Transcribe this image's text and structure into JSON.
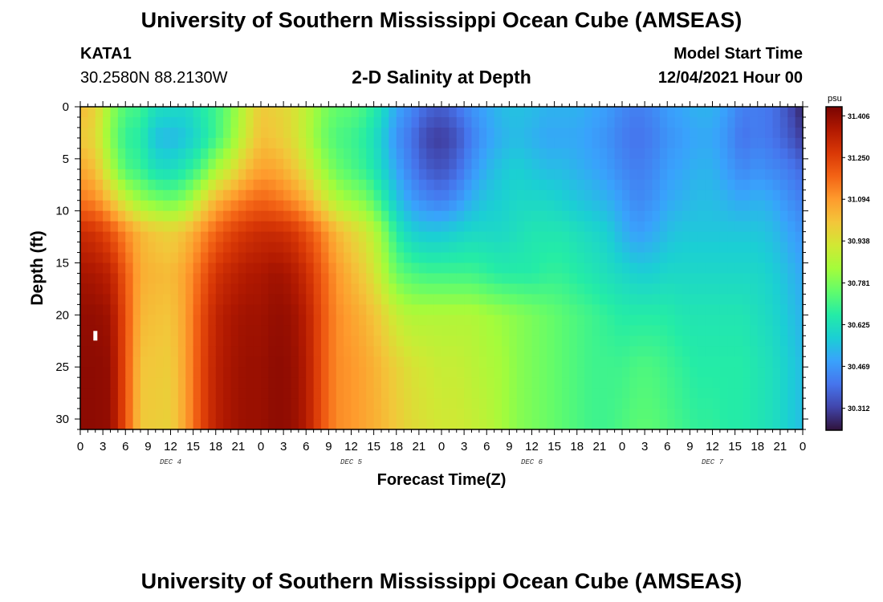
{
  "page": {
    "title_top": "University of Southern Mississippi Ocean Cube (AMSEAS)",
    "title_bottom": "University of Southern Mississippi Ocean Cube (AMSEAS)",
    "station_id": "KATA1",
    "coordinates": "30.2580N  88.2130W",
    "subtitle": "2-D Salinity at Depth",
    "model_start_label": "Model Start Time",
    "model_start_value": "12/04/2021 Hour 00"
  },
  "chart_data": {
    "type": "heatmap",
    "title": "2-D Salinity at Depth",
    "xlabel": "Forecast Time(Z)",
    "ylabel": "Depth (ft)",
    "x_range_hours": [
      0,
      96
    ],
    "y_range_ft": [
      0,
      31
    ],
    "x_step_hours": 1,
    "y_step_ft": 1,
    "x_ticks": [
      {
        "hour": 0,
        "label": "0"
      },
      {
        "hour": 3,
        "label": "3"
      },
      {
        "hour": 6,
        "label": "6"
      },
      {
        "hour": 9,
        "label": "9"
      },
      {
        "hour": 12,
        "label": "12"
      },
      {
        "hour": 15,
        "label": "15"
      },
      {
        "hour": 18,
        "label": "18"
      },
      {
        "hour": 21,
        "label": "21"
      },
      {
        "hour": 24,
        "label": "0"
      },
      {
        "hour": 27,
        "label": "3"
      },
      {
        "hour": 30,
        "label": "6"
      },
      {
        "hour": 33,
        "label": "9"
      },
      {
        "hour": 36,
        "label": "12"
      },
      {
        "hour": 39,
        "label": "15"
      },
      {
        "hour": 42,
        "label": "18"
      },
      {
        "hour": 45,
        "label": "21"
      },
      {
        "hour": 48,
        "label": "0"
      },
      {
        "hour": 51,
        "label": "3"
      },
      {
        "hour": 54,
        "label": "6"
      },
      {
        "hour": 57,
        "label": "9"
      },
      {
        "hour": 60,
        "label": "12"
      },
      {
        "hour": 63,
        "label": "15"
      },
      {
        "hour": 66,
        "label": "18"
      },
      {
        "hour": 69,
        "label": "21"
      },
      {
        "hour": 72,
        "label": "0"
      },
      {
        "hour": 75,
        "label": "3"
      },
      {
        "hour": 78,
        "label": "6"
      },
      {
        "hour": 81,
        "label": "9"
      },
      {
        "hour": 84,
        "label": "12"
      },
      {
        "hour": 87,
        "label": "15"
      },
      {
        "hour": 90,
        "label": "18"
      },
      {
        "hour": 93,
        "label": "21"
      },
      {
        "hour": 96,
        "label": "0"
      }
    ],
    "day_labels": [
      {
        "hour": 12,
        "label": "DEC 4"
      },
      {
        "hour": 36,
        "label": "DEC 5"
      },
      {
        "hour": 60,
        "label": "DEC 6"
      },
      {
        "hour": 84,
        "label": "DEC 7"
      }
    ],
    "y_ticks": [
      {
        "ft": 0,
        "label": "0"
      },
      {
        "ft": 5,
        "label": "5"
      },
      {
        "ft": 10,
        "label": "10"
      },
      {
        "ft": 15,
        "label": "15"
      },
      {
        "ft": 20,
        "label": "20"
      },
      {
        "ft": 25,
        "label": "25"
      },
      {
        "ft": 30,
        "label": "30"
      }
    ],
    "colorbar": {
      "unit": "psu",
      "min": 30.23,
      "max": 31.44,
      "ticks": [
        {
          "value": 31.406,
          "label": "31.406"
        },
        {
          "value": 31.25,
          "label": "31.250"
        },
        {
          "value": 31.094,
          "label": "31.094"
        },
        {
          "value": 30.938,
          "label": "30.938"
        },
        {
          "value": 30.781,
          "label": "30.781"
        },
        {
          "value": 30.625,
          "label": "30.625"
        },
        {
          "value": 30.469,
          "label": "30.469"
        },
        {
          "value": 30.312,
          "label": "30.312"
        }
      ],
      "colors": [
        "#30123b",
        "#4145ab",
        "#4675ed",
        "#39a2fc",
        "#1bcfd4",
        "#24eca6",
        "#61fc6c",
        "#a4fc3b",
        "#d1e834",
        "#f3c63a",
        "#fe9b2d",
        "#f36315",
        "#d93806",
        "#b11901",
        "#7a0402"
      ]
    },
    "salinity_model": {
      "description": "approximate salinity (psu) at key depths for each forecast hour",
      "anchor_depths_ft": [
        0,
        3,
        6,
        9,
        12,
        16,
        20,
        25,
        31
      ],
      "columns": [
        {
          "hour": 0,
          "values": [
            31.03,
            31.0,
            31.07,
            31.15,
            31.3,
            31.37,
            31.4,
            31.41,
            31.41
          ]
        },
        {
          "hour": 2,
          "values": [
            30.98,
            30.96,
            31.02,
            31.12,
            31.28,
            31.36,
            31.4,
            31.41,
            31.41
          ]
        },
        {
          "hour": 4,
          "values": [
            30.82,
            30.8,
            30.86,
            31.02,
            31.22,
            31.33,
            31.38,
            31.4,
            31.4
          ]
        },
        {
          "hour": 6,
          "values": [
            30.72,
            30.68,
            30.72,
            30.9,
            31.12,
            31.2,
            31.22,
            31.22,
            31.22
          ]
        },
        {
          "hour": 8,
          "values": [
            30.7,
            30.66,
            30.69,
            30.82,
            31.04,
            31.06,
            31.04,
            31.01,
            31.0
          ]
        },
        {
          "hour": 10,
          "values": [
            30.62,
            30.55,
            30.62,
            30.78,
            31.0,
            31.04,
            31.02,
            31.0,
            30.99
          ]
        },
        {
          "hour": 12,
          "values": [
            30.61,
            30.53,
            30.61,
            30.76,
            30.98,
            31.03,
            31.01,
            30.99,
            30.98
          ]
        },
        {
          "hour": 14,
          "values": [
            30.6,
            30.56,
            30.65,
            30.8,
            31.02,
            31.08,
            31.08,
            31.08,
            31.08
          ]
        },
        {
          "hour": 16,
          "values": [
            30.65,
            30.62,
            30.72,
            30.92,
            31.1,
            31.18,
            31.22,
            31.23,
            31.23
          ]
        },
        {
          "hour": 18,
          "values": [
            30.7,
            30.7,
            30.84,
            31.04,
            31.18,
            31.28,
            31.32,
            31.33,
            31.33
          ]
        },
        {
          "hour": 20,
          "values": [
            30.78,
            30.8,
            30.92,
            31.1,
            31.24,
            31.32,
            31.36,
            31.37,
            31.37
          ]
        },
        {
          "hour": 22,
          "values": [
            30.9,
            30.92,
            31.02,
            31.15,
            31.28,
            31.35,
            31.38,
            31.39,
            31.39
          ]
        },
        {
          "hour": 24,
          "values": [
            31.0,
            31.02,
            31.08,
            31.18,
            31.3,
            31.36,
            31.38,
            31.39,
            31.39
          ]
        },
        {
          "hour": 26,
          "values": [
            30.98,
            31.0,
            31.07,
            31.16,
            31.3,
            31.38,
            31.4,
            31.41,
            31.41
          ]
        },
        {
          "hour": 28,
          "values": [
            30.95,
            30.96,
            31.02,
            31.12,
            31.28,
            31.36,
            31.39,
            31.4,
            31.4
          ]
        },
        {
          "hour": 30,
          "values": [
            30.88,
            30.88,
            30.94,
            31.06,
            31.22,
            31.3,
            31.34,
            31.35,
            31.35
          ]
        },
        {
          "hour": 32,
          "values": [
            30.8,
            30.78,
            30.84,
            30.96,
            31.14,
            31.2,
            31.22,
            31.22,
            31.22
          ]
        },
        {
          "hour": 34,
          "values": [
            30.75,
            30.72,
            30.76,
            30.86,
            31.04,
            31.1,
            31.12,
            31.12,
            31.12
          ]
        },
        {
          "hour": 36,
          "values": [
            30.74,
            30.7,
            30.72,
            30.82,
            30.98,
            31.04,
            31.08,
            31.1,
            31.1
          ]
        },
        {
          "hour": 38,
          "values": [
            30.7,
            30.66,
            30.68,
            30.78,
            30.92,
            30.98,
            31.04,
            31.07,
            31.07
          ]
        },
        {
          "hour": 40,
          "values": [
            30.62,
            30.58,
            30.6,
            30.68,
            30.82,
            30.88,
            30.98,
            31.03,
            31.04
          ]
        },
        {
          "hour": 42,
          "values": [
            30.5,
            30.46,
            30.5,
            30.56,
            30.66,
            30.76,
            30.9,
            30.98,
            31.0
          ]
        },
        {
          "hour": 44,
          "values": [
            30.44,
            30.4,
            30.42,
            30.48,
            30.58,
            30.72,
            30.86,
            30.94,
            30.96
          ]
        },
        {
          "hour": 46,
          "values": [
            30.38,
            30.32,
            30.36,
            30.44,
            30.56,
            30.7,
            30.86,
            30.92,
            30.94
          ]
        },
        {
          "hour": 48,
          "values": [
            30.36,
            30.3,
            30.34,
            30.42,
            30.56,
            30.7,
            30.86,
            30.9,
            30.92
          ]
        },
        {
          "hour": 50,
          "values": [
            30.4,
            30.34,
            30.38,
            30.46,
            30.58,
            30.7,
            30.86,
            30.9,
            30.92
          ]
        },
        {
          "hour": 52,
          "values": [
            30.46,
            30.42,
            30.46,
            30.52,
            30.6,
            30.7,
            30.86,
            30.88,
            30.9
          ]
        },
        {
          "hour": 54,
          "values": [
            30.5,
            30.48,
            30.52,
            30.56,
            30.6,
            30.68,
            30.84,
            30.86,
            30.88
          ]
        },
        {
          "hour": 56,
          "values": [
            30.54,
            30.52,
            30.56,
            30.58,
            30.6,
            30.66,
            30.82,
            30.84,
            30.84
          ]
        },
        {
          "hour": 58,
          "values": [
            30.55,
            30.54,
            30.58,
            30.6,
            30.62,
            30.66,
            30.8,
            30.8,
            30.8
          ]
        },
        {
          "hour": 60,
          "values": [
            30.54,
            30.52,
            30.56,
            30.6,
            30.64,
            30.66,
            30.78,
            30.78,
            30.78
          ]
        },
        {
          "hour": 62,
          "values": [
            30.52,
            30.5,
            30.54,
            30.6,
            30.64,
            30.68,
            30.76,
            30.76,
            30.76
          ]
        },
        {
          "hour": 64,
          "values": [
            30.52,
            30.5,
            30.54,
            30.58,
            30.64,
            30.68,
            30.74,
            30.74,
            30.74
          ]
        },
        {
          "hour": 66,
          "values": [
            30.52,
            30.5,
            30.52,
            30.56,
            30.62,
            30.66,
            30.72,
            30.72,
            30.72
          ]
        },
        {
          "hour": 68,
          "values": [
            30.5,
            30.48,
            30.5,
            30.54,
            30.6,
            30.64,
            30.7,
            30.7,
            30.7
          ]
        },
        {
          "hour": 70,
          "values": [
            30.48,
            30.46,
            30.48,
            30.52,
            30.58,
            30.62,
            30.68,
            30.7,
            30.7
          ]
        },
        {
          "hour": 72,
          "values": [
            30.44,
            30.42,
            30.44,
            30.48,
            30.52,
            30.6,
            30.66,
            30.7,
            30.72
          ]
        },
        {
          "hour": 74,
          "values": [
            30.42,
            30.4,
            30.42,
            30.44,
            30.48,
            30.58,
            30.66,
            30.72,
            30.74
          ]
        },
        {
          "hour": 76,
          "values": [
            30.44,
            30.42,
            30.44,
            30.46,
            30.5,
            30.58,
            30.66,
            30.72,
            30.74
          ]
        },
        {
          "hour": 78,
          "values": [
            30.48,
            30.46,
            30.48,
            30.5,
            30.54,
            30.6,
            30.66,
            30.7,
            30.72
          ]
        },
        {
          "hour": 80,
          "values": [
            30.5,
            30.48,
            30.5,
            30.52,
            30.56,
            30.6,
            30.64,
            30.68,
            30.7
          ]
        },
        {
          "hour": 82,
          "values": [
            30.52,
            30.5,
            30.52,
            30.54,
            30.56,
            30.6,
            30.64,
            30.66,
            30.68
          ]
        },
        {
          "hour": 84,
          "values": [
            30.52,
            30.5,
            30.52,
            30.54,
            30.56,
            30.6,
            30.64,
            30.66,
            30.68
          ]
        },
        {
          "hour": 86,
          "values": [
            30.48,
            30.46,
            30.48,
            30.52,
            30.56,
            30.6,
            30.64,
            30.66,
            30.66
          ]
        },
        {
          "hour": 88,
          "values": [
            30.42,
            30.4,
            30.44,
            30.5,
            30.56,
            30.6,
            30.64,
            30.66,
            30.66
          ]
        },
        {
          "hour": 90,
          "values": [
            30.42,
            30.42,
            30.46,
            30.52,
            30.56,
            30.6,
            30.62,
            30.64,
            30.64
          ]
        },
        {
          "hour": 92,
          "values": [
            30.4,
            30.4,
            30.44,
            30.5,
            30.54,
            30.58,
            30.6,
            30.62,
            30.62
          ]
        },
        {
          "hour": 94,
          "values": [
            30.34,
            30.36,
            30.42,
            30.46,
            30.5,
            30.54,
            30.56,
            30.58,
            30.58
          ]
        },
        {
          "hour": 96,
          "values": [
            30.26,
            30.3,
            30.38,
            30.42,
            30.46,
            30.5,
            30.52,
            30.54,
            30.54
          ]
        }
      ]
    },
    "marker": {
      "hour": 2,
      "depth_ft": 22
    }
  }
}
